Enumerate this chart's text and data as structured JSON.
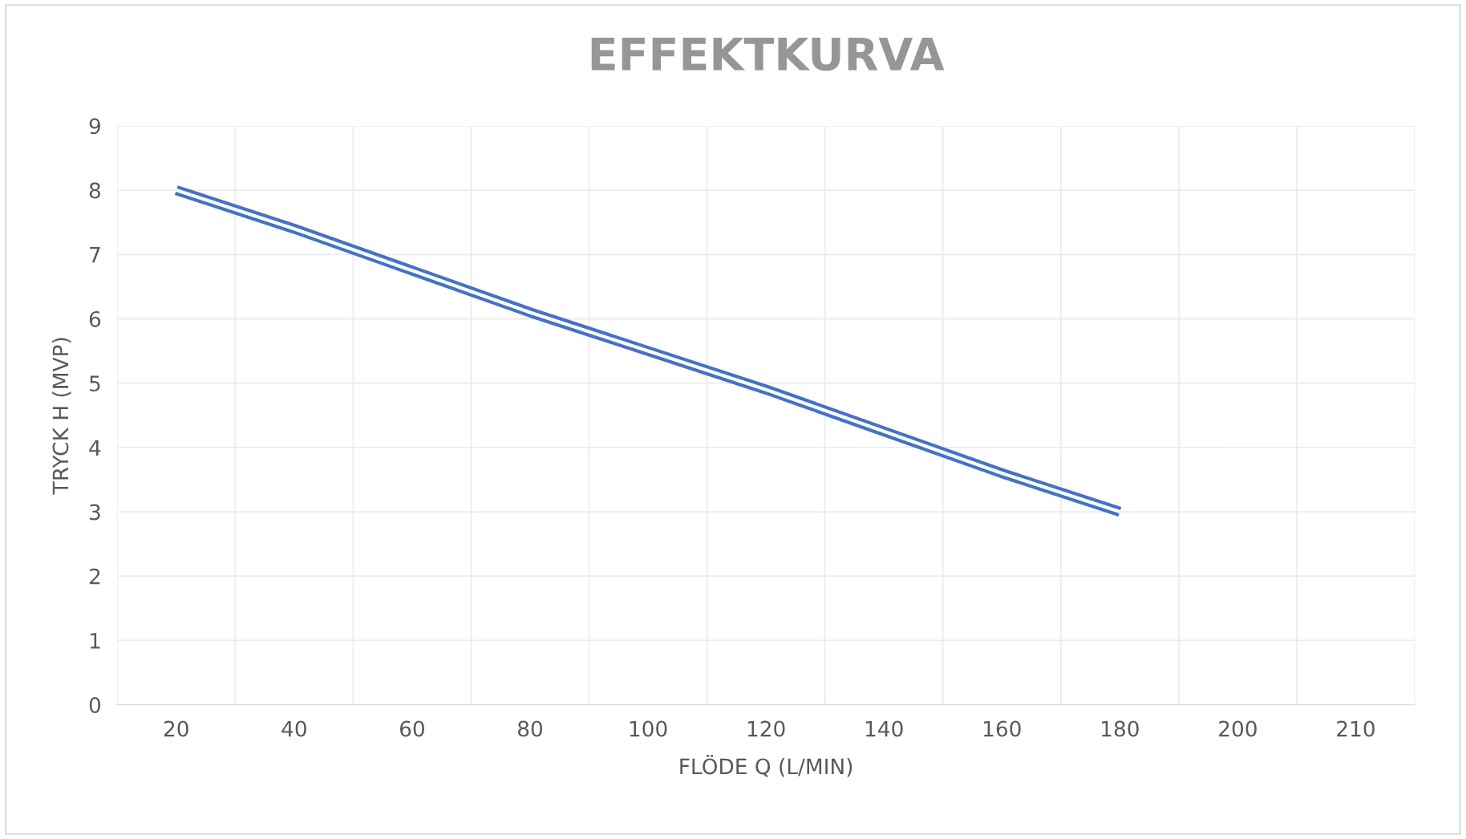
{
  "chart_data": {
    "type": "line",
    "title": "EFFEKTKURVA",
    "xlabel": "FLÖDE Q (L/MIN)",
    "ylabel": "TRYCK H (MVP)",
    "categories": [
      "20",
      "40",
      "60",
      "80",
      "100",
      "120",
      "140",
      "160",
      "180",
      "200",
      "210"
    ],
    "series": [
      {
        "color": "#4472c4",
        "values": [
          8,
          7.4,
          6.75,
          6.1,
          5.5,
          4.9,
          4.25,
          3.6,
          3,
          null,
          null
        ]
      }
    ],
    "ylim": [
      0,
      9
    ],
    "yticks": [
      0,
      1,
      2,
      3,
      4,
      5,
      6,
      7,
      8,
      9
    ],
    "grid": true,
    "marker": "none",
    "line_style": "solid"
  }
}
